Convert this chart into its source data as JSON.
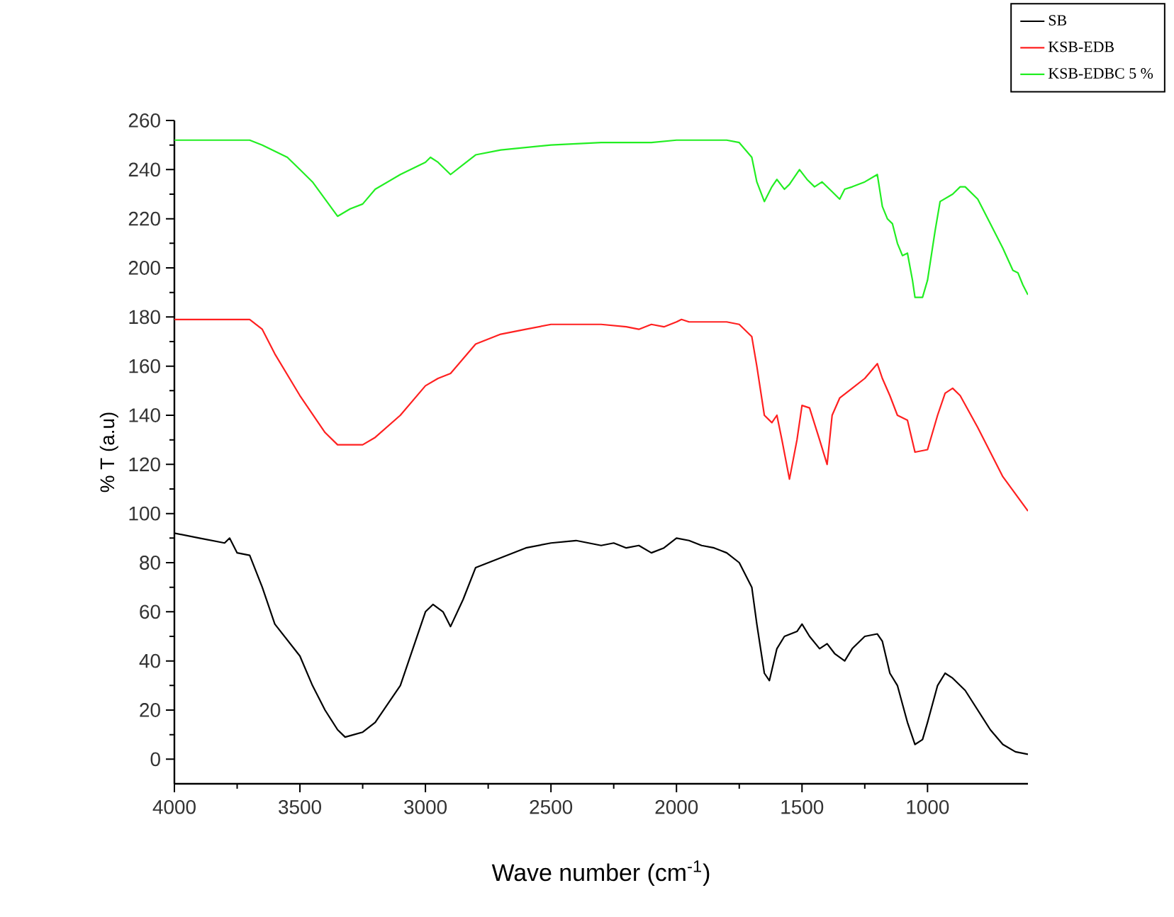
{
  "chart_data": {
    "type": "line",
    "xlabel": "Wave number (cm$^{-1}$)",
    "ylabel": "% T (a.u)",
    "xlim": [
      4000,
      600
    ],
    "ylim": [
      -10,
      260
    ],
    "xticks": [
      4000,
      3500,
      3000,
      2500,
      2000,
      1500,
      1000
    ],
    "yticks": [
      0,
      20,
      40,
      60,
      80,
      100,
      120,
      140,
      160,
      180,
      200,
      220,
      240,
      260
    ],
    "grid": false,
    "legend": "top right",
    "marker": "none",
    "line_style": "solid",
    "series": [
      {
        "name": "SB",
        "color": "#000000",
        "x": [
          4000,
          3900,
          3800,
          3780,
          3750,
          3700,
          3650,
          3600,
          3500,
          3450,
          3400,
          3350,
          3320,
          3250,
          3200,
          3100,
          3050,
          3000,
          2970,
          2930,
          2900,
          2850,
          2800,
          2700,
          2600,
          2500,
          2400,
          2300,
          2250,
          2200,
          2150,
          2100,
          2050,
          2000,
          1950,
          1900,
          1850,
          1800,
          1750,
          1700,
          1680,
          1650,
          1630,
          1600,
          1570,
          1520,
          1500,
          1470,
          1430,
          1400,
          1370,
          1330,
          1300,
          1250,
          1200,
          1180,
          1150,
          1120,
          1080,
          1050,
          1020,
          1000,
          960,
          930,
          900,
          850,
          800,
          750,
          700,
          650,
          600
        ],
        "values": [
          92,
          90,
          88,
          90,
          84,
          83,
          70,
          55,
          42,
          30,
          20,
          12,
          9,
          11,
          15,
          30,
          45,
          60,
          63,
          60,
          54,
          65,
          78,
          82,
          86,
          88,
          89,
          87,
          88,
          86,
          87,
          84,
          86,
          90,
          89,
          87,
          86,
          84,
          80,
          70,
          55,
          35,
          32,
          45,
          50,
          52,
          55,
          50,
          45,
          47,
          43,
          40,
          45,
          50,
          51,
          48,
          35,
          30,
          15,
          6,
          8,
          15,
          30,
          35,
          33,
          28,
          20,
          12,
          6,
          3,
          2
        ]
      },
      {
        "name": "KSB-EDB",
        "color": "#ff2020",
        "x": [
          4000,
          3700,
          3650,
          3600,
          3500,
          3400,
          3350,
          3250,
          3200,
          3100,
          3000,
          2950,
          2900,
          2850,
          2800,
          2700,
          2600,
          2500,
          2400,
          2300,
          2200,
          2150,
          2100,
          2050,
          2000,
          1980,
          1950,
          1800,
          1750,
          1700,
          1680,
          1650,
          1620,
          1600,
          1580,
          1550,
          1520,
          1500,
          1470,
          1430,
          1400,
          1380,
          1350,
          1300,
          1250,
          1200,
          1180,
          1150,
          1120,
          1080,
          1050,
          1000,
          960,
          930,
          900,
          870,
          800,
          750,
          700,
          650,
          600
        ],
        "values": [
          179,
          179,
          175,
          165,
          148,
          133,
          128,
          128,
          131,
          140,
          152,
          155,
          157,
          163,
          169,
          173,
          175,
          177,
          177,
          177,
          176,
          175,
          177,
          176,
          178,
          179,
          178,
          178,
          177,
          172,
          160,
          140,
          137,
          140,
          130,
          114,
          130,
          144,
          143,
          130,
          120,
          140,
          147,
          151,
          155,
          161,
          155,
          148,
          140,
          138,
          125,
          126,
          140,
          149,
          151,
          148,
          135,
          125,
          115,
          108,
          101
        ]
      },
      {
        "name": "KSB-EDBC 5 %",
        "color": "#22ee22",
        "x": [
          4000,
          3700,
          3650,
          3550,
          3500,
          3450,
          3400,
          3350,
          3300,
          3250,
          3200,
          3100,
          3000,
          2980,
          2950,
          2900,
          2850,
          2800,
          2700,
          2500,
          2300,
          2100,
          2000,
          1800,
          1750,
          1700,
          1680,
          1650,
          1620,
          1600,
          1570,
          1550,
          1510,
          1480,
          1450,
          1420,
          1380,
          1350,
          1330,
          1300,
          1250,
          1200,
          1180,
          1160,
          1140,
          1120,
          1100,
          1080,
          1060,
          1050,
          1020,
          1000,
          970,
          950,
          900,
          870,
          850,
          800,
          750,
          700,
          660,
          640,
          620,
          600
        ],
        "values": [
          252,
          252,
          250,
          245,
          240,
          235,
          228,
          221,
          224,
          226,
          232,
          238,
          243,
          245,
          243,
          238,
          242,
          246,
          248,
          250,
          251,
          251,
          252,
          252,
          251,
          245,
          235,
          227,
          233,
          236,
          232,
          234,
          240,
          236,
          233,
          235,
          231,
          228,
          232,
          233,
          235,
          238,
          225,
          220,
          218,
          210,
          205,
          206,
          195,
          188,
          188,
          195,
          215,
          227,
          230,
          233,
          233,
          228,
          218,
          208,
          199,
          198,
          193,
          189
        ]
      }
    ]
  }
}
